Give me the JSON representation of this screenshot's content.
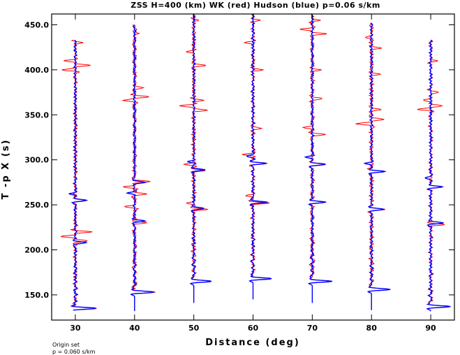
{
  "chart_data": {
    "type": "line",
    "title": "ZSS H=400 (km) WK (red) Hudson (blue) p=0.06 s/km",
    "xlabel": "Distance (deg)",
    "ylabel": "T -p X (s)",
    "xlim": [
      26,
      94
    ],
    "ylim": [
      122,
      462
    ],
    "x_ticks": [
      30,
      40,
      50,
      60,
      70,
      80,
      90
    ],
    "y_ticks": [
      150,
      200,
      250,
      300,
      350,
      400,
      450
    ],
    "x_tick_labels": [
      "30",
      "40",
      "50",
      "60",
      "70",
      "80",
      "90"
    ],
    "y_tick_labels": [
      "150.0",
      "200.0",
      "250.0",
      "300.0",
      "350.0",
      "400.0",
      "450.0"
    ],
    "grid": false,
    "legend": "none",
    "colors": {
      "wk": "#ff0000",
      "hudson": "#0000ff",
      "axis": "#000000"
    },
    "series": [
      {
        "distance": 30,
        "trace_start": 133,
        "trace_end": 433,
        "onset": 135,
        "wk_pulses": [
          [
            135,
            3.5
          ],
          [
            210,
            2.2
          ],
          [
            215,
            -2.4
          ],
          [
            220,
            2.6
          ],
          [
            255,
            1.6
          ],
          [
            400,
            -2.2
          ],
          [
            405,
            2.4
          ],
          [
            410,
            -1.8
          ],
          [
            430,
            1.2
          ]
        ],
        "hudson_pulses": [
          [
            135,
            3.5
          ],
          [
            208,
            1.8
          ],
          [
            255,
            2.0
          ],
          [
            262,
            -1.0
          ]
        ]
      },
      {
        "distance": 40,
        "trace_start": 132,
        "trace_end": 450,
        "onset": 153,
        "wk_pulses": [
          [
            153,
            3.3
          ],
          [
            230,
            2.0
          ],
          [
            248,
            -1.6
          ],
          [
            262,
            2.2
          ],
          [
            270,
            -1.8
          ],
          [
            276,
            2.6
          ],
          [
            370,
            2.4
          ],
          [
            366,
            -1.8
          ],
          [
            380,
            1.6
          ],
          [
            440,
            0.8
          ]
        ],
        "hudson_pulses": [
          [
            153,
            3.3
          ],
          [
            232,
            1.6
          ],
          [
            275,
            1.8
          ],
          [
            263,
            -1.2
          ]
        ]
      },
      {
        "distance": 50,
        "trace_start": 141,
        "trace_end": 462,
        "onset": 165,
        "wk_pulses": [
          [
            165,
            3.0
          ],
          [
            245,
            2.2
          ],
          [
            252,
            -1.5
          ],
          [
            288,
            2.0
          ],
          [
            295,
            -1.4
          ],
          [
            355,
            2.4
          ],
          [
            360,
            -2.6
          ],
          [
            366,
            1.8
          ],
          [
            405,
            2.2
          ],
          [
            420,
            -1.2
          ],
          [
            455,
            0.8
          ]
        ],
        "hudson_pulses": [
          [
            165,
            3.0
          ],
          [
            246,
            1.8
          ],
          [
            289,
            1.8
          ],
          [
            298,
            -1.0
          ]
        ]
      },
      {
        "distance": 60,
        "trace_start": 145,
        "trace_end": 462,
        "onset": 168,
        "wk_pulses": [
          [
            168,
            3.2
          ],
          [
            252,
            2.6
          ],
          [
            260,
            -1.4
          ],
          [
            296,
            2.4
          ],
          [
            306,
            -1.5
          ],
          [
            335,
            1.6
          ],
          [
            400,
            1.4
          ],
          [
            430,
            -1.5
          ],
          [
            455,
            1.2
          ]
        ],
        "hudson_pulses": [
          [
            168,
            3.2
          ],
          [
            253,
            2.3
          ],
          [
            296,
            2.2
          ],
          [
            304,
            -1.2
          ]
        ]
      },
      {
        "distance": 70,
        "trace_start": 141,
        "trace_end": 462,
        "onset": 165,
        "wk_pulses": [
          [
            165,
            3.2
          ],
          [
            253,
            2.3
          ],
          [
            295,
            2.2
          ],
          [
            328,
            2.2
          ],
          [
            336,
            -1.6
          ],
          [
            368,
            1.8
          ],
          [
            400,
            1.4
          ],
          [
            440,
            2.4
          ],
          [
            445,
            -2.0
          ],
          [
            455,
            1.2
          ]
        ],
        "hudson_pulses": [
          [
            165,
            3.2
          ],
          [
            253,
            2.2
          ],
          [
            295,
            2.2
          ],
          [
            303,
            -1.0
          ]
        ]
      },
      {
        "distance": 80,
        "trace_start": 133,
        "trace_end": 452,
        "onset": 156,
        "wk_pulses": [
          [
            156,
            3.2
          ],
          [
            245,
            2.3
          ],
          [
            287,
            2.2
          ],
          [
            340,
            -2.6
          ],
          [
            345,
            2.2
          ],
          [
            356,
            1.6
          ],
          [
            395,
            1.3
          ],
          [
            424,
            1.6
          ],
          [
            436,
            -1.2
          ]
        ],
        "hudson_pulses": [
          [
            156,
            3.2
          ],
          [
            245,
            2.3
          ],
          [
            287,
            2.2
          ],
          [
            296,
            -1.0
          ]
        ]
      },
      {
        "distance": 90,
        "trace_start": 132,
        "trace_end": 433,
        "onset": 137,
        "wk_pulses": [
          [
            137,
            3.3
          ],
          [
            228,
            2.3
          ],
          [
            270,
            2.0
          ],
          [
            356,
            -2.0
          ],
          [
            360,
            2.0
          ],
          [
            366,
            -1.2
          ],
          [
            375,
            1.3
          ],
          [
            410,
            1.0
          ]
        ],
        "hudson_pulses": [
          [
            137,
            3.3
          ],
          [
            230,
            2.2
          ],
          [
            270,
            2.0
          ],
          [
            280,
            -1.0
          ]
        ]
      }
    ]
  },
  "footer": {
    "line1": "Origin set",
    "line2": "p = 0.060 s/km"
  }
}
